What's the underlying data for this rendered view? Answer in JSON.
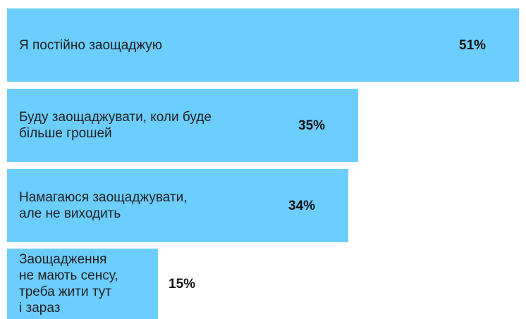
{
  "chart_data": {
    "type": "bar",
    "orientation": "horizontal",
    "categories": [
      "Я постійно заощаджую",
      "Буду заощаджувати, коли буде\nбільше грошей",
      "Намагаюся заощаджувати,\nале не виходить",
      "Заощадження\nне мають сенсу,\nтреба жити тут\nі зараз"
    ],
    "values": [
      51,
      35,
      34,
      15
    ],
    "value_labels": [
      "51%",
      "35%",
      "34%",
      "15%"
    ],
    "unit": "%",
    "bar_color": "#6ccdff"
  }
}
